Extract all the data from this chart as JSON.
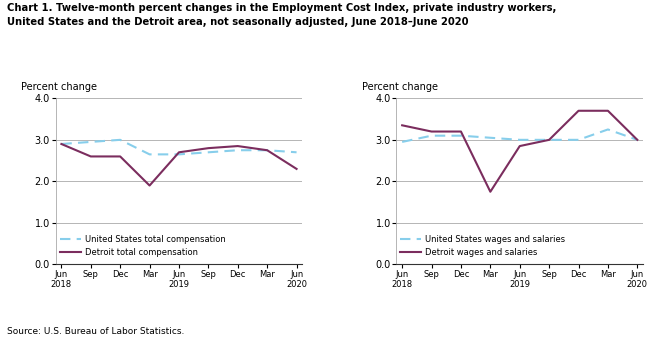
{
  "title_line1": "Chart 1. Twelve-month percent changes in the Employment Cost Index, private industry workers,",
  "title_line2": "United States and the Detroit area, not seasonally adjusted, June 2018–June 2020",
  "source": "Source: U.S. Bureau of Labor Statistics.",
  "ylabel": "Percent change",
  "xtick_labels": [
    "Jun\n2018",
    "Sep",
    "Dec",
    "Mar",
    "Jun\n2019",
    "Sep",
    "Dec",
    "Mar",
    "Jun\n2020"
  ],
  "ylim": [
    0.0,
    4.0
  ],
  "yticks": [
    0.0,
    1.0,
    2.0,
    3.0,
    4.0
  ],
  "left_chart": {
    "us_total_comp": [
      2.9,
      2.95,
      3.0,
      2.65,
      2.65,
      2.7,
      2.75,
      2.75,
      2.7
    ],
    "detroit_total_comp": [
      2.9,
      2.6,
      2.6,
      1.9,
      2.7,
      2.8,
      2.85,
      2.75,
      2.3
    ],
    "legend": [
      "United States total compensation",
      "Detroit total compensation"
    ]
  },
  "right_chart": {
    "us_wages_sal": [
      2.95,
      3.1,
      3.1,
      3.05,
      3.0,
      3.0,
      3.0,
      3.25,
      3.0
    ],
    "detroit_wages_sal": [
      3.35,
      3.2,
      3.2,
      1.75,
      2.85,
      3.0,
      3.7,
      3.7,
      3.0
    ],
    "legend": [
      "United States wages and salaries",
      "Detroit wages and salaries"
    ]
  },
  "us_color": "#87CEEB",
  "detroit_color": "#7B2D5E",
  "us_linestyle": "--",
  "detroit_linestyle": "-",
  "linewidth": 1.5
}
